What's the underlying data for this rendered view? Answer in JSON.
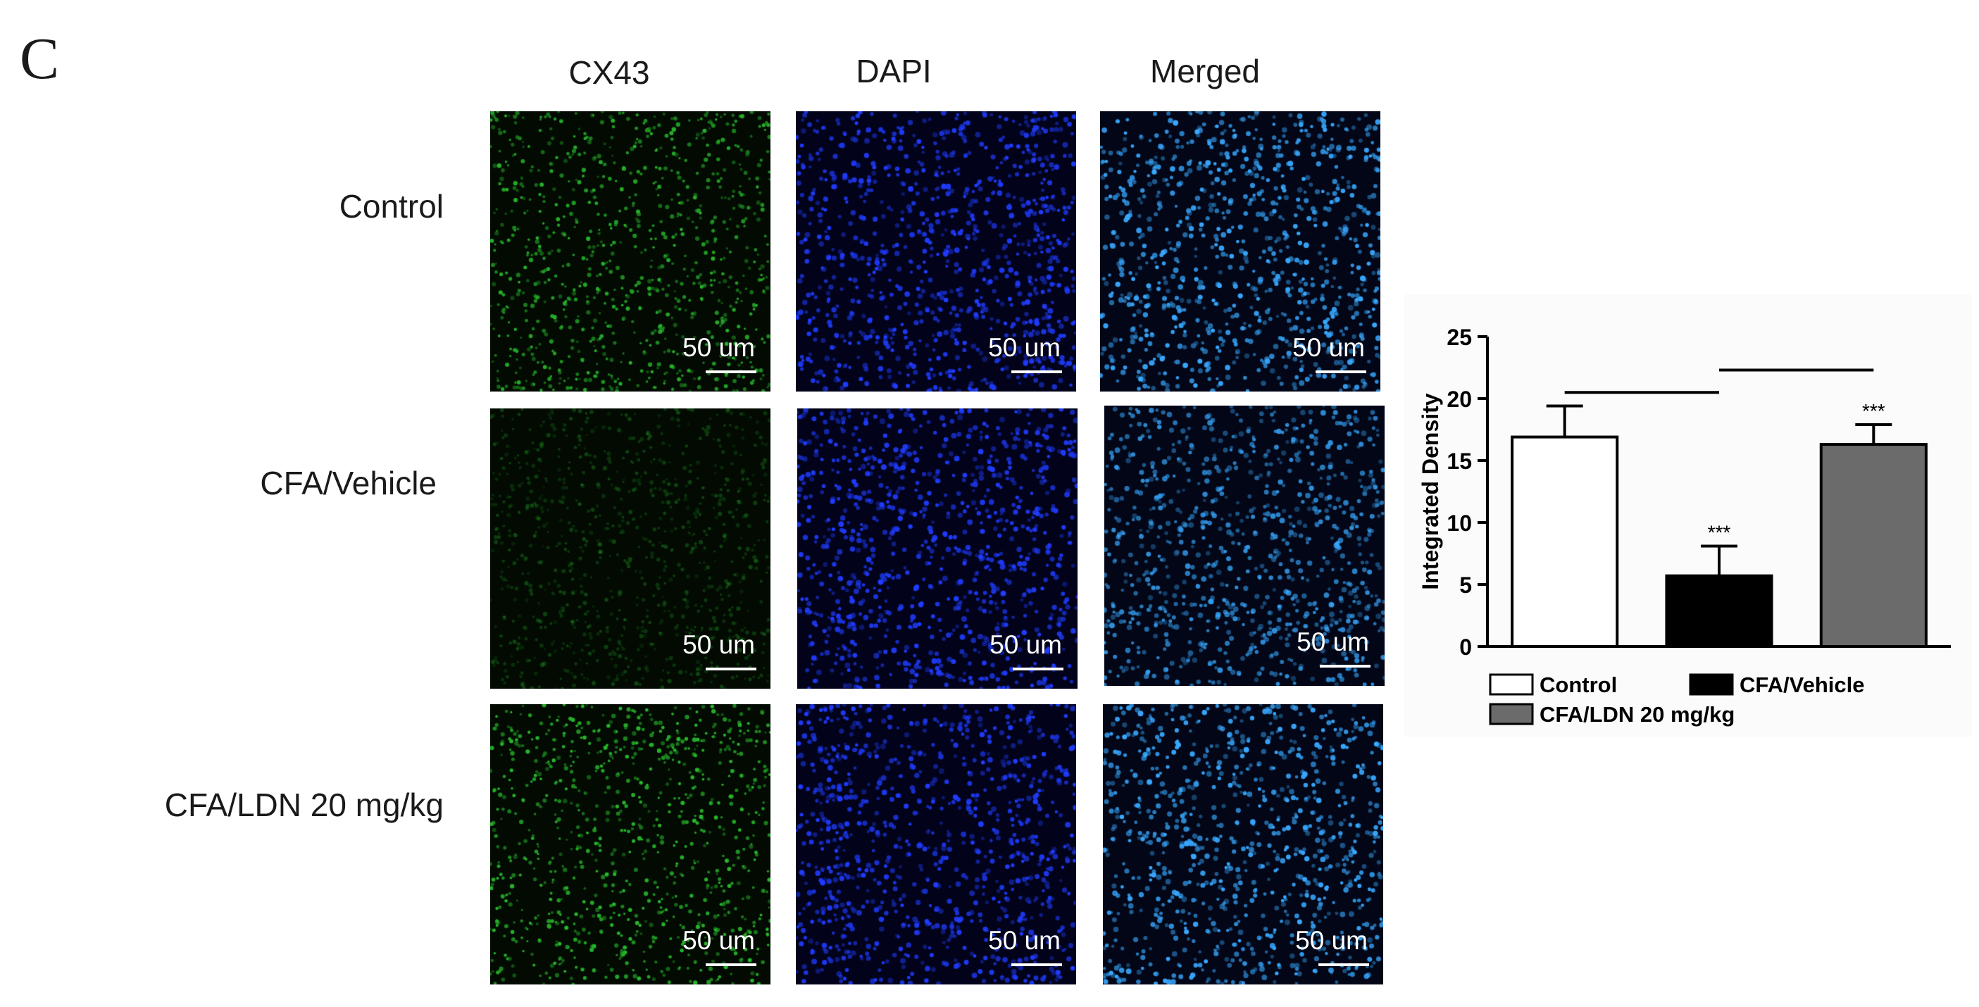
{
  "figure": {
    "panel_letter": "C",
    "columns": [
      "CX43",
      "DAPI",
      "Merged"
    ],
    "rows": [
      "Control",
      "CFA/Vehicle",
      "CFA/LDN 20 mg/kg"
    ],
    "scale_bar_label": "50 um",
    "channel_colors": {
      "CX43": "#27b32a",
      "DAPI": "#1f3cff",
      "Merged": "#38a8ff"
    }
  },
  "chart_data": {
    "type": "bar",
    "ylabel": "Integrated Density",
    "ylim": [
      0,
      25
    ],
    "yticks": [
      0,
      5,
      10,
      15,
      20,
      25
    ],
    "categories": [
      "Control",
      "CFA/Vehicle",
      "CFA/LDN 20 mg/kg"
    ],
    "values": [
      16.9,
      5.7,
      16.3
    ],
    "errors": [
      2.5,
      2.4,
      1.6
    ],
    "significance": [
      "",
      "***",
      "***"
    ],
    "bar_colors": [
      "#ffffff",
      "#000000",
      "#6b6b6b"
    ],
    "comparison_lines": [
      {
        "from": "Control",
        "to": "CFA/Vehicle"
      },
      {
        "from": "CFA/Vehicle",
        "to": "CFA/LDN 20 mg/kg"
      }
    ],
    "legend": [
      "Control",
      "CFA/Vehicle",
      "CFA/LDN 20 mg/kg"
    ],
    "legend_position": "bottom"
  }
}
